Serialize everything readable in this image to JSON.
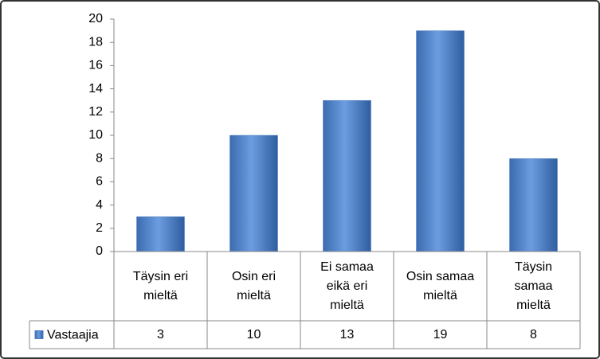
{
  "chart_data": {
    "type": "bar",
    "categories": [
      "Täysin eri\nmieltä",
      "Osin eri\nmieltä",
      "Ei samaa\neikä eri\nmieltä",
      "Osin samaa\nmieltä",
      "Täysin\nsamaa\nmieltä"
    ],
    "series": [
      {
        "name": "Vastaajia",
        "color": "#4a7ebf",
        "values": [
          3,
          10,
          13,
          19,
          8
        ]
      }
    ],
    "ylim": [
      0,
      20
    ],
    "yticks": [
      0,
      2,
      4,
      6,
      8,
      10,
      12,
      14,
      16,
      18,
      20
    ],
    "grid": false,
    "data_table": true
  }
}
